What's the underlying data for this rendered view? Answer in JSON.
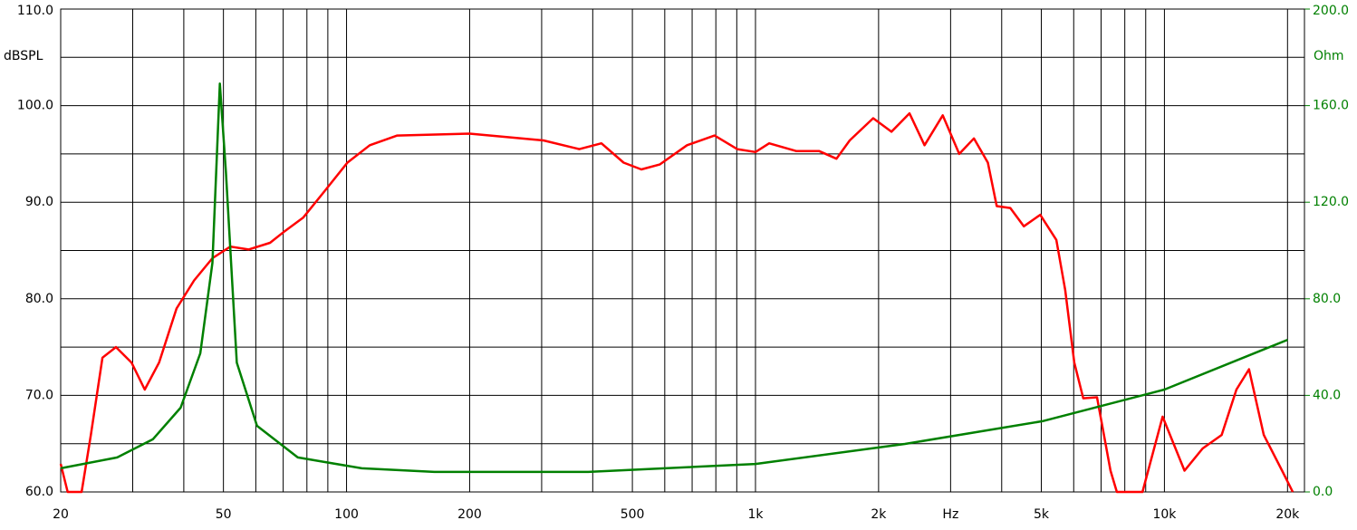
{
  "chart_data": {
    "type": "line",
    "xscale": "log",
    "ylabel": "dBSPL",
    "y2label": "Ohm",
    "xlim": [
      20,
      22000
    ],
    "ylim": [
      60,
      110
    ],
    "y2lim": [
      0,
      200
    ],
    "xticks": [
      20,
      50,
      100,
      200,
      500,
      {
        "value": 1000,
        "label": "1k"
      },
      {
        "value": 2000,
        "label": "2k"
      },
      {
        "value": 3000,
        "label": "Hz"
      },
      {
        "value": 5000,
        "label": "5k"
      },
      {
        "value": 10000,
        "label": "10k"
      },
      {
        "value": 20000,
        "label": "20k"
      }
    ],
    "xgrid_minor": [
      30,
      40,
      60,
      70,
      80,
      90,
      300,
      400,
      600,
      700,
      800,
      900,
      4000,
      6000,
      7000,
      8000,
      9000
    ],
    "yticks": [
      {
        "value": 60,
        "label": "60.0"
      },
      {
        "value": 70,
        "label": "70.0"
      },
      {
        "value": 80,
        "label": "80.0"
      },
      {
        "value": 90,
        "label": "90.0"
      },
      {
        "value": 100,
        "label": "100.0"
      },
      {
        "value": 110,
        "label": "110.0"
      }
    ],
    "ygrid_minor": [
      65,
      75,
      85,
      95,
      105
    ],
    "y2ticks": [
      {
        "value": 0,
        "label": "0.0"
      },
      {
        "value": 40,
        "label": "40.0"
      },
      {
        "value": 80,
        "label": "80.0"
      },
      {
        "value": 120,
        "label": "120.0"
      },
      {
        "value": 160,
        "label": "160.0"
      },
      {
        "value": 200,
        "label": "200.0"
      }
    ],
    "y2color": "#008000",
    "grid": true,
    "series": [
      {
        "color": "#ff0000",
        "x": [
          20,
          20.8,
          22.5,
          23.7,
          25.3,
          27.3,
          29.8,
          32.1,
          34.8,
          38.4,
          42.4,
          47,
          52,
          57.6,
          65,
          70.6,
          78.3,
          88.6,
          100.5,
          114,
          133,
          200,
          303,
          371,
          420,
          476,
          526,
          583,
          680,
          794,
          902,
          1000,
          1080,
          1257,
          1430,
          1578,
          1700,
          1940,
          2150,
          2380,
          2590,
          2870,
          3150,
          3420,
          3700,
          3890,
          4200,
          4530,
          4970,
          5440,
          5720,
          6020,
          6330,
          6840,
          7380,
          7650,
          8840,
          9900,
          11200,
          12400,
          13800,
          15000,
          16100,
          17500,
          19400,
          20600
        ],
        "values": [
          62.9,
          60,
          60,
          65.9,
          73.9,
          75,
          73.4,
          70.6,
          73.4,
          79,
          81.9,
          84.2,
          85.4,
          85.1,
          85.8,
          87,
          88.4,
          91.2,
          94.1,
          95.9,
          96.9,
          97.1,
          96.4,
          95.5,
          96.1,
          94.1,
          93.4,
          93.9,
          95.9,
          96.9,
          95.5,
          95.2,
          96.1,
          95.3,
          95.3,
          94.5,
          96.4,
          98.7,
          97.3,
          99.2,
          95.9,
          99,
          95,
          96.6,
          94.1,
          89.6,
          89.4,
          87.5,
          88.7,
          86.1,
          80.9,
          73.4,
          69.7,
          69.8,
          62.2,
          60,
          60,
          67.8,
          62.2,
          64.5,
          65.9,
          70.6,
          72.7,
          65.9,
          62.2,
          60
        ]
      },
      {
        "color": "#008000",
        "axis": "y2",
        "x": [
          20,
          27.5,
          33.6,
          39.3,
          43.9,
          47,
          49,
          50.7,
          53.9,
          60.4,
          76,
          109,
          164,
          390,
          1000,
          2320,
          5030,
          10000,
          20000
        ],
        "values": [
          9.8,
          14.3,
          21.8,
          34.9,
          57.4,
          94.9,
          169.1,
          132.4,
          53.6,
          27.4,
          14.3,
          9.8,
          8.3,
          8.3,
          11.6,
          19.9,
          29.3,
          42.4,
          63
        ]
      }
    ]
  }
}
